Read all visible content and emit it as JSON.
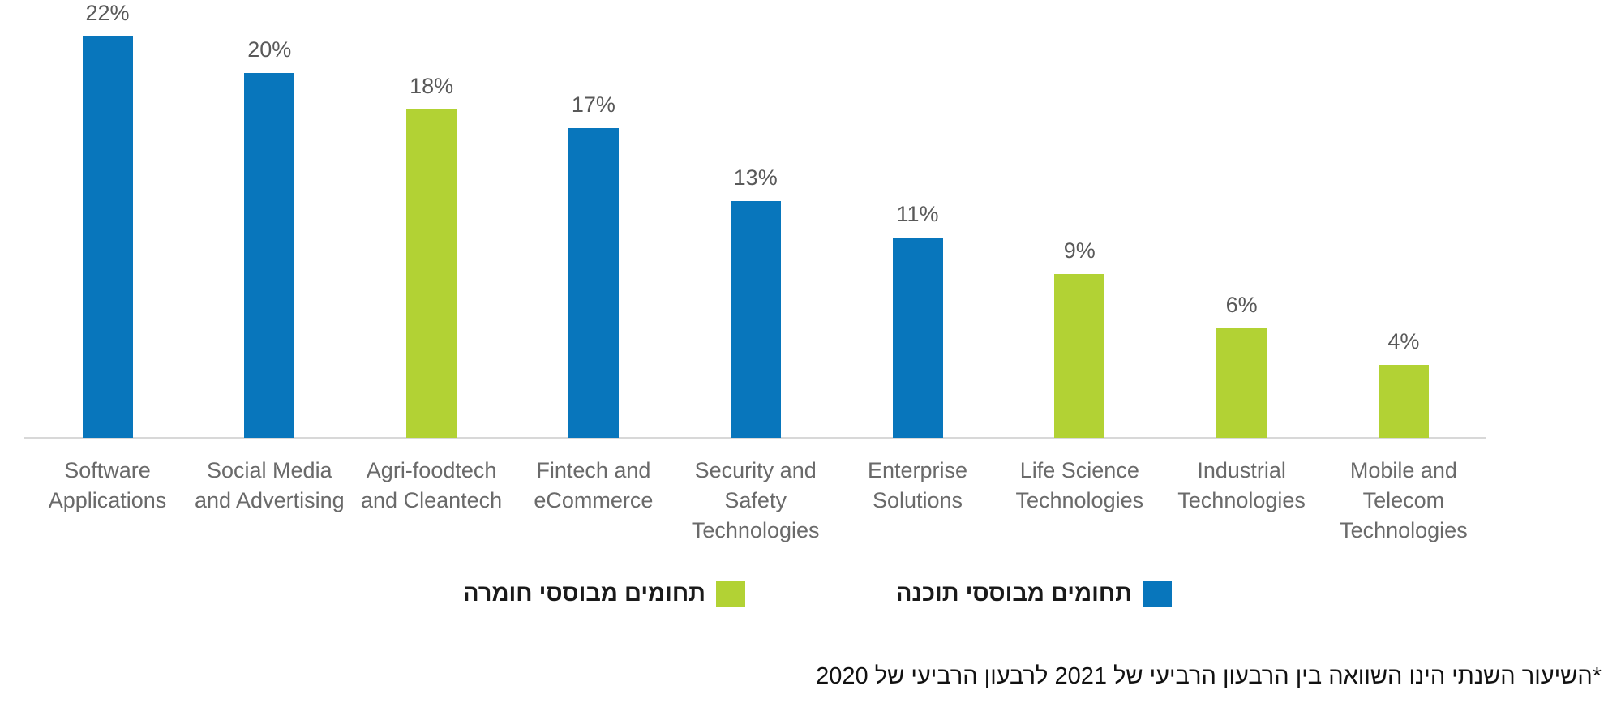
{
  "chart_data": {
    "type": "bar",
    "title": "",
    "xlabel": "",
    "ylabel": "",
    "ylim": [
      0,
      22
    ],
    "grid": false,
    "categories": [
      "Software Applications",
      "Social Media and Advertising",
      "Agri-foodtech and Cleantech",
      "Fintech and eCommerce",
      "Security and Safety Technologies",
      "Enterprise Solutions",
      "Life Science Technologies",
      "Industrial Technologies",
      "Mobile and Telecom Technologies"
    ],
    "categories_display": [
      "Software\nApplications",
      "Social Media\nand Advertising",
      "Agri-foodtech\nand Cleantech",
      "Fintech and\neCommerce",
      "Security and\nSafety\nTechnologies",
      "Enterprise\nSolutions",
      "Life Science\nTechnologies",
      "Industrial\nTechnologies",
      "Mobile and\nTelecom\nTechnologies"
    ],
    "values": [
      22,
      20,
      18,
      17,
      13,
      11,
      9,
      6,
      4
    ],
    "value_labels": [
      "22%",
      "20%",
      "18%",
      "17%",
      "13%",
      "11%",
      "9%",
      "6%",
      "4%"
    ],
    "bar_types": [
      "software",
      "software",
      "hardware",
      "software",
      "software",
      "software",
      "hardware",
      "hardware",
      "hardware"
    ],
    "colors": {
      "software": "#0876BC",
      "hardware": "#B2D234"
    },
    "legend_position": "bottom",
    "legend": [
      {
        "key": "hardware",
        "label": "תחומים מבוססי חומרה",
        "color": "#B2D234"
      },
      {
        "key": "software",
        "label": "תחומים מבוססי תוכנה",
        "color": "#0876BC"
      }
    ],
    "footnote": "*השיעור השנתי הינו השוואה בין הרבעון הרביעי של 2021 לרבעון הרביעי של 2020"
  }
}
